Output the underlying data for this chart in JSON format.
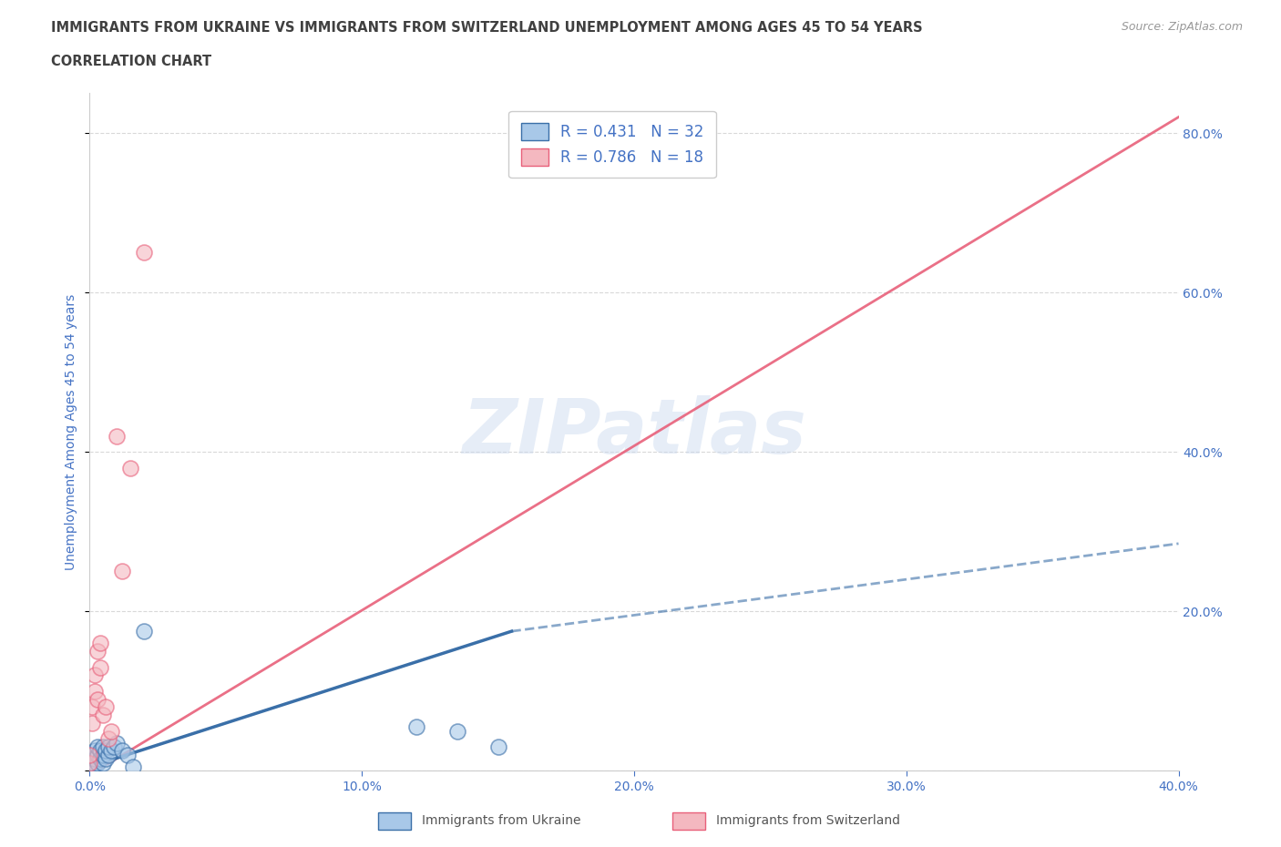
{
  "title_line1": "IMMIGRANTS FROM UKRAINE VS IMMIGRANTS FROM SWITZERLAND UNEMPLOYMENT AMONG AGES 45 TO 54 YEARS",
  "title_line2": "CORRELATION CHART",
  "source_text": "Source: ZipAtlas.com",
  "ylabel": "Unemployment Among Ages 45 to 54 years",
  "watermark_text": "ZIPatlas",
  "ukraine_color": "#a8c8e8",
  "ukraine_color_line": "#3a6fa8",
  "switzerland_color": "#f4b8c0",
  "switzerland_color_line": "#e8607a",
  "ukraine_R": 0.431,
  "ukraine_N": 32,
  "switzerland_R": 0.786,
  "switzerland_N": 18,
  "ukraine_x": [
    0.0,
    0.0,
    0.0,
    0.001,
    0.001,
    0.001,
    0.001,
    0.002,
    0.002,
    0.002,
    0.003,
    0.003,
    0.003,
    0.004,
    0.004,
    0.005,
    0.005,
    0.005,
    0.006,
    0.006,
    0.007,
    0.007,
    0.008,
    0.009,
    0.01,
    0.012,
    0.014,
    0.016,
    0.02,
    0.12,
    0.135,
    0.15
  ],
  "ukraine_y": [
    0.005,
    0.01,
    0.015,
    0.005,
    0.01,
    0.015,
    0.02,
    0.008,
    0.015,
    0.025,
    0.01,
    0.02,
    0.03,
    0.015,
    0.025,
    0.01,
    0.02,
    0.03,
    0.015,
    0.025,
    0.02,
    0.03,
    0.025,
    0.03,
    0.035,
    0.025,
    0.02,
    0.005,
    0.175,
    0.055,
    0.05,
    0.03
  ],
  "switzerland_x": [
    0.0,
    0.0,
    0.001,
    0.001,
    0.002,
    0.002,
    0.003,
    0.003,
    0.004,
    0.004,
    0.005,
    0.006,
    0.007,
    0.008,
    0.01,
    0.012,
    0.015,
    0.02
  ],
  "switzerland_y": [
    0.01,
    0.02,
    0.06,
    0.08,
    0.1,
    0.12,
    0.09,
    0.15,
    0.13,
    0.16,
    0.07,
    0.08,
    0.04,
    0.05,
    0.42,
    0.25,
    0.38,
    0.65
  ],
  "switzerland_line_x0": 0.0,
  "switzerland_line_y0": -0.005,
  "switzerland_line_x1": 0.4,
  "switzerland_line_y1": 0.82,
  "ukraine_line_solid_x0": 0.0,
  "ukraine_line_solid_y0": 0.005,
  "ukraine_line_solid_x1": 0.155,
  "ukraine_line_solid_y1": 0.175,
  "ukraine_line_dash_x1": 0.4,
  "ukraine_line_dash_y1": 0.285,
  "xlim": [
    0.0,
    0.4
  ],
  "ylim": [
    0.0,
    0.85
  ],
  "yticks": [
    0.0,
    0.2,
    0.4,
    0.6,
    0.8
  ],
  "ytick_labels": [
    "",
    "20.0%",
    "40.0%",
    "60.0%",
    "80.0%"
  ],
  "xticks": [
    0.0,
    0.1,
    0.2,
    0.3,
    0.4
  ],
  "xtick_labels": [
    "0.0%",
    "10.0%",
    "20.0%",
    "30.0%",
    "40.0%"
  ],
  "grid_color": "#d0d0d0",
  "title_color": "#404040",
  "axis_label_color": "#4472c4",
  "legend_ukraine_label": "R = 0.431   N = 32",
  "legend_switzerland_label": "R = 0.786   N = 18",
  "bottom_legend_ukraine": "Immigrants from Ukraine",
  "bottom_legend_switzerland": "Immigrants from Switzerland"
}
